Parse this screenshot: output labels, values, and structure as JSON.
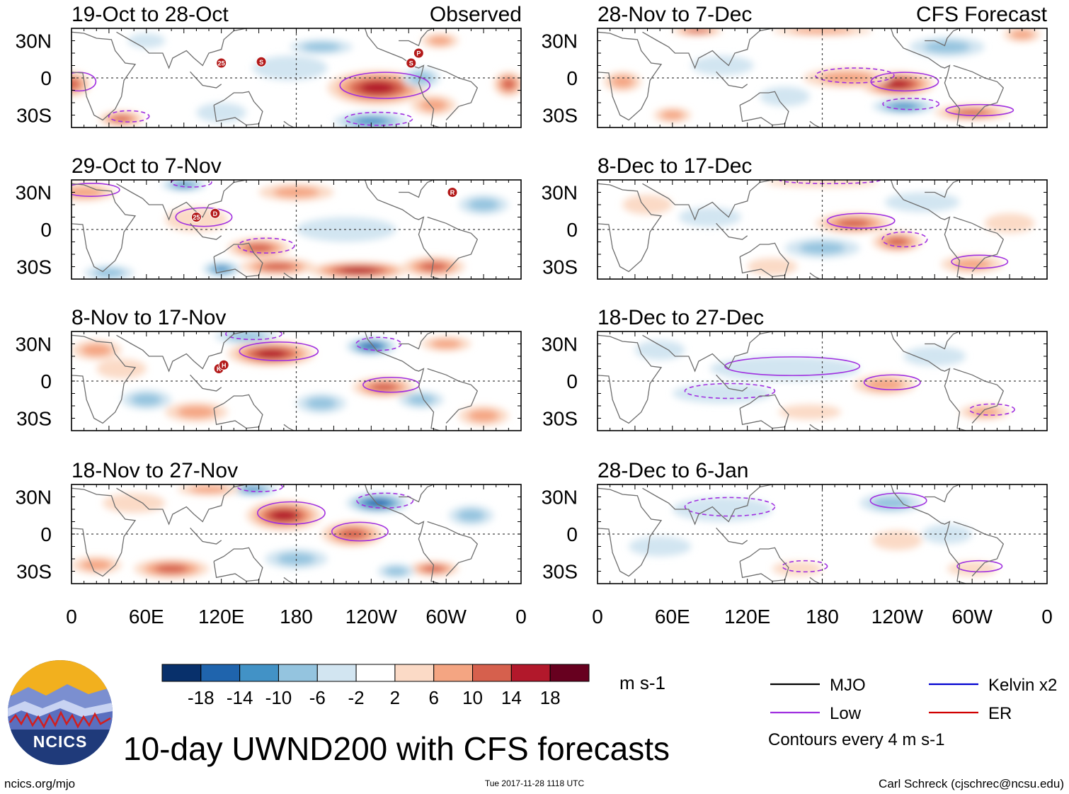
{
  "chart_data": {
    "type": "heatmap",
    "title": "10-day UWND200 with CFS forecasts",
    "variable": "200 hPa zonal wind anomaly (10-day mean)",
    "units": "m s-1",
    "column_labels": {
      "left": "Observed",
      "right": "CFS Forecast"
    },
    "x_ticks": [
      "0",
      "60E",
      "120E",
      "180",
      "120W",
      "60W",
      "0"
    ],
    "y_ticks": [
      "30N",
      "0",
      "30S"
    ],
    "lon_range": [
      0,
      360
    ],
    "lat_range": [
      -40,
      40
    ],
    "colorbar": {
      "levels": [
        "-18",
        "-14",
        "-10",
        "-6",
        "-2",
        "2",
        "6",
        "10",
        "14",
        "18"
      ],
      "colors": [
        "#08306b",
        "#1f64ad",
        "#4292c6",
        "#94c4df",
        "#d2e5f1",
        "#ffffff",
        "#fbdac6",
        "#f4a582",
        "#d6604d",
        "#b2182b",
        "#67001f"
      ]
    },
    "panels": [
      {
        "column": "Observed",
        "period": "19-Oct to 28-Oct",
        "blobs": [
          [
            0,
            -5,
            15,
            10,
            3
          ],
          [
            40,
            -33,
            18,
            6,
            3
          ],
          [
            245,
            -8,
            40,
            14,
            4
          ],
          [
            240,
            -35,
            30,
            7,
            -3
          ],
          [
            290,
            -22,
            18,
            8,
            2
          ],
          [
            350,
            -5,
            12,
            10,
            3
          ],
          [
            175,
            8,
            30,
            10,
            -1
          ],
          [
            295,
            30,
            15,
            6,
            2
          ],
          [
            60,
            30,
            15,
            6,
            -1
          ],
          [
            120,
            -28,
            20,
            8,
            -1
          ],
          [
            200,
            25,
            25,
            6,
            -2
          ],
          [
            280,
            0,
            15,
            8,
            -2
          ]
        ],
        "storms": [
          [
            "25",
            120,
            12
          ],
          [
            "S",
            152,
            13
          ],
          [
            "P",
            278,
            20
          ],
          [
            "S",
            272,
            12
          ]
        ]
      },
      {
        "column": "Observed",
        "period": "29-Oct to 7-Nov",
        "blobs": [
          [
            10,
            30,
            25,
            7,
            2
          ],
          [
            90,
            36,
            18,
            5,
            -3
          ],
          [
            100,
            8,
            25,
            10,
            1
          ],
          [
            150,
            -15,
            25,
            8,
            3
          ],
          [
            230,
            -33,
            40,
            7,
            4
          ],
          [
            165,
            -30,
            30,
            7,
            3
          ],
          [
            290,
            -30,
            25,
            8,
            3
          ],
          [
            220,
            0,
            40,
            10,
            -1
          ],
          [
            30,
            -35,
            20,
            6,
            -2
          ],
          [
            120,
            -32,
            15,
            6,
            -3
          ],
          [
            180,
            30,
            30,
            7,
            2
          ],
          [
            330,
            20,
            20,
            8,
            -2
          ]
        ],
        "storms": [
          [
            "25",
            100,
            10
          ],
          [
            "D",
            115,
            13
          ],
          [
            "R",
            305,
            30
          ]
        ]
      },
      {
        "column": "Observed",
        "period": "8-Nov to 17-Nov",
        "blobs": [
          [
            160,
            22,
            35,
            10,
            4
          ],
          [
            240,
            28,
            20,
            7,
            -4
          ],
          [
            250,
            -5,
            25,
            8,
            3
          ],
          [
            140,
            36,
            25,
            6,
            -2
          ],
          [
            300,
            30,
            20,
            6,
            2
          ],
          [
            20,
            25,
            20,
            8,
            2
          ],
          [
            60,
            -15,
            20,
            8,
            -2
          ],
          [
            200,
            -18,
            20,
            8,
            -2
          ],
          [
            100,
            -25,
            25,
            8,
            2
          ],
          [
            330,
            -28,
            20,
            8,
            2
          ],
          [
            280,
            -15,
            18,
            7,
            -2
          ],
          [
            40,
            10,
            20,
            8,
            1
          ]
        ],
        "storms": [
          [
            "K",
            118,
            10
          ],
          [
            "H",
            122,
            13
          ]
        ]
      },
      {
        "column": "Observed",
        "period": "18-Nov to 27-Nov",
        "blobs": [
          [
            170,
            15,
            30,
            12,
            4
          ],
          [
            245,
            25,
            25,
            8,
            -4
          ],
          [
            225,
            0,
            25,
            10,
            3
          ],
          [
            145,
            36,
            20,
            5,
            -3
          ],
          [
            80,
            -28,
            30,
            8,
            3
          ],
          [
            290,
            -28,
            20,
            6,
            3
          ],
          [
            110,
            36,
            25,
            5,
            2
          ],
          [
            180,
            -20,
            25,
            8,
            -2
          ],
          [
            20,
            -25,
            20,
            7,
            2
          ],
          [
            320,
            15,
            18,
            8,
            -2
          ],
          [
            50,
            25,
            25,
            8,
            1
          ],
          [
            260,
            -30,
            15,
            6,
            -2
          ]
        ],
        "storms": []
      },
      {
        "column": "CFS Forecast",
        "period": "28-Nov to 7-Dec",
        "blobs": [
          [
            240,
            -5,
            30,
            10,
            4
          ],
          [
            245,
            -23,
            25,
            6,
            -3
          ],
          [
            300,
            -28,
            30,
            6,
            3
          ],
          [
            200,
            0,
            35,
            8,
            2
          ],
          [
            180,
            38,
            40,
            4,
            2
          ],
          [
            80,
            38,
            20,
            4,
            3
          ],
          [
            20,
            -3,
            15,
            8,
            2
          ],
          [
            150,
            -15,
            20,
            8,
            -1
          ],
          [
            280,
            25,
            30,
            8,
            -2
          ],
          [
            100,
            10,
            25,
            8,
            -1
          ],
          [
            60,
            -30,
            15,
            6,
            2
          ],
          [
            340,
            35,
            15,
            6,
            2
          ]
        ],
        "storms": []
      },
      {
        "column": "CFS Forecast",
        "period": "8-Dec to 17-Dec",
        "blobs": [
          [
            205,
            5,
            30,
            8,
            3
          ],
          [
            240,
            -10,
            20,
            8,
            3
          ],
          [
            300,
            -28,
            25,
            7,
            2
          ],
          [
            180,
            38,
            45,
            4,
            1
          ],
          [
            180,
            -15,
            30,
            8,
            -2
          ],
          [
            260,
            22,
            30,
            8,
            -1
          ],
          [
            90,
            10,
            25,
            8,
            -1
          ],
          [
            140,
            -30,
            20,
            7,
            1
          ],
          [
            40,
            20,
            20,
            8,
            1
          ],
          [
            330,
            5,
            20,
            8,
            1
          ]
        ],
        "storms": []
      },
      {
        "column": "CFS Forecast",
        "period": "18-Dec to 27-Dec",
        "blobs": [
          [
            230,
            -3,
            25,
            8,
            2
          ],
          [
            310,
            -25,
            20,
            6,
            2
          ],
          [
            150,
            10,
            60,
            10,
            -1
          ],
          [
            100,
            -10,
            40,
            8,
            -1
          ],
          [
            270,
            20,
            25,
            8,
            -1
          ],
          [
            170,
            -25,
            25,
            6,
            1
          ],
          [
            50,
            25,
            20,
            8,
            -1
          ]
        ],
        "storms": []
      },
      {
        "column": "CFS Forecast",
        "period": "28-Dec to 6-Jan",
        "blobs": [
          [
            235,
            25,
            25,
            8,
            -2
          ],
          [
            100,
            20,
            40,
            10,
            -1
          ],
          [
            300,
            -28,
            20,
            6,
            1
          ],
          [
            160,
            -28,
            20,
            6,
            1
          ],
          [
            240,
            -5,
            20,
            8,
            1
          ],
          [
            50,
            -10,
            25,
            8,
            -1
          ],
          [
            280,
            0,
            20,
            8,
            -1
          ]
        ],
        "storms": []
      }
    ],
    "legend": [
      {
        "label": "MJO",
        "color": "#000000"
      },
      {
        "label": "Low",
        "color": "#a030e0"
      },
      {
        "label": "Kelvin x2",
        "color": "#0000d0"
      },
      {
        "label": "ER",
        "color": "#d00000"
      }
    ],
    "contour_note": "Contours every 4 m s-1"
  },
  "logo_text": "NCICS",
  "footer": {
    "website": "ncics.org/mjo",
    "timestamp": "Tue 2017-11-28 1118 UTC",
    "credit": "Carl Schreck (cjschrec@ncsu.edu)"
  }
}
